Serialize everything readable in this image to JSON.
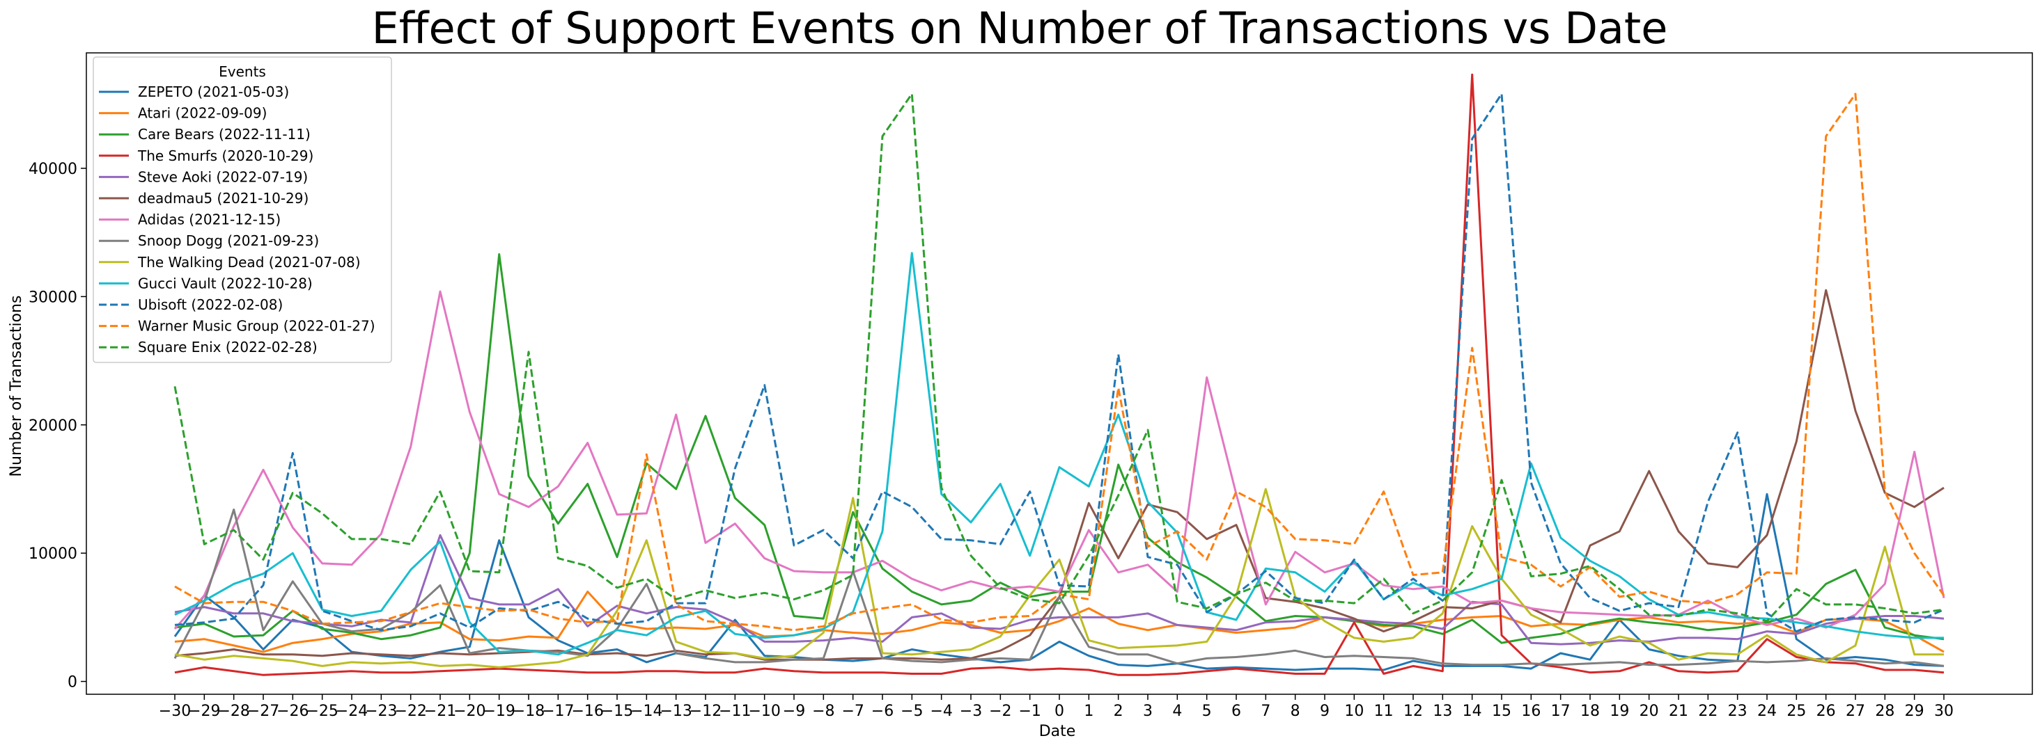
{
  "chart_data": {
    "type": "line",
    "title": "Effect of Support Events on Number of Transactions vs Date",
    "xlabel": "Date",
    "ylabel": "Number of Transactions",
    "xlim": [
      -30,
      30
    ],
    "ylim": [
      -1000,
      49000
    ],
    "yticks": [
      0,
      10000,
      20000,
      30000,
      40000
    ],
    "ytick_labels": [
      "0",
      "10000",
      "20000",
      "30000",
      "40000"
    ],
    "grid": false,
    "legend": {
      "title": "Events",
      "placement": "upper-left"
    },
    "x": [
      -30,
      -29,
      -28,
      -27,
      -26,
      -25,
      -24,
      -23,
      -22,
      -21,
      -20,
      -19,
      -18,
      -17,
      -16,
      -15,
      -14,
      -13,
      -12,
      -11,
      -10,
      -9,
      -8,
      -7,
      -6,
      -5,
      -4,
      -3,
      -2,
      -1,
      0,
      1,
      2,
      3,
      4,
      5,
      6,
      7,
      8,
      9,
      10,
      11,
      12,
      13,
      14,
      15,
      16,
      17,
      18,
      19,
      20,
      21,
      22,
      23,
      24,
      25,
      26,
      27,
      28,
      29,
      30
    ],
    "x_tick_labels": [
      "−30",
      "−29",
      "−28",
      "−27",
      "−26",
      "−25",
      "−24",
      "−23",
      "−22",
      "−21",
      "−20",
      "−19",
      "−18",
      "−17",
      "−16",
      "−15",
      "−14",
      "−13",
      "−12",
      "−11",
      "−10",
      "−9",
      "−8",
      "−7",
      "−6",
      "−5",
      "−4",
      "−3",
      "−2",
      "−1",
      "0",
      "1",
      "2",
      "3",
      "4",
      "5",
      "6",
      "7",
      "8",
      "9",
      "10",
      "11",
      "12",
      "13",
      "14",
      "15",
      "16",
      "17",
      "18",
      "19",
      "20",
      "21",
      "22",
      "23",
      "24",
      "25",
      "26",
      "27",
      "28",
      "29",
      "30"
    ],
    "series": [
      {
        "name": "ZEPETO (2021-05-03)",
        "color": "#1f77b4",
        "dash": "solid",
        "values": [
          3500,
          6700,
          5000,
          2500,
          4800,
          4200,
          2300,
          2000,
          1800,
          2300,
          2700,
          11000,
          5000,
          3200,
          2200,
          2500,
          1500,
          2200,
          1900,
          4800,
          2000,
          1900,
          1700,
          1600,
          1800,
          2500,
          2100,
          1800,
          1500,
          1700,
          3100,
          2000,
          1300,
          1200,
          1400,
          1000,
          1100,
          1000,
          900,
          1000,
          1000,
          900,
          1600,
          1200,
          1200,
          1200,
          1000,
          2200,
          1700,
          4800,
          2500,
          2000,
          1700,
          1600,
          14600,
          3300,
          1700,
          1900,
          1700,
          1300,
          1200
        ]
      },
      {
        "name": "Atari (2022-09-09)",
        "color": "#ff7f0e",
        "dash": "solid",
        "values": [
          3100,
          3300,
          2800,
          2300,
          3000,
          3300,
          3700,
          3900,
          4500,
          4600,
          3300,
          3200,
          3500,
          3400,
          7000,
          4500,
          4100,
          4200,
          4100,
          4400,
          3500,
          3600,
          4000,
          3800,
          3700,
          4000,
          4600,
          4400,
          3800,
          4000,
          4700,
          5700,
          4500,
          4000,
          4400,
          4100,
          3800,
          4000,
          4200,
          5000,
          4700,
          4300,
          4500,
          4800,
          5000,
          5100,
          4300,
          4500,
          4400,
          4800,
          5000,
          4600,
          4700,
          4500,
          4600,
          3800,
          4800,
          4900,
          4700,
          3600,
          2300
        ]
      },
      {
        "name": "Care Bears (2022-11-11)",
        "color": "#2ca02c",
        "dash": "solid",
        "values": [
          4200,
          4500,
          3500,
          3600,
          5500,
          4100,
          3800,
          3300,
          3600,
          4200,
          10000,
          33300,
          16000,
          12300,
          15400,
          9700,
          17000,
          15000,
          20700,
          14300,
          12200,
          5100,
          4900,
          13200,
          8800,
          7000,
          6000,
          6300,
          7700,
          6600,
          7000,
          7000,
          16900,
          11200,
          9300,
          8100,
          6600,
          4700,
          5100,
          5000,
          4700,
          4400,
          4300,
          3700,
          4800,
          3000,
          3400,
          3700,
          4500,
          4900,
          4600,
          4400,
          4000,
          4200,
          4600,
          5200,
          7600,
          8700,
          4200,
          3600,
          3300
        ]
      },
      {
        "name": "The Smurfs (2020-10-29)",
        "color": "#d62728",
        "dash": "solid",
        "values": [
          700,
          1100,
          800,
          500,
          600,
          700,
          800,
          700,
          700,
          800,
          900,
          1000,
          900,
          800,
          700,
          700,
          800,
          800,
          700,
          700,
          1000,
          800,
          700,
          700,
          700,
          600,
          600,
          1000,
          1100,
          900,
          1000,
          900,
          500,
          500,
          600,
          800,
          1000,
          800,
          600,
          600,
          4600,
          600,
          1200,
          800,
          47300,
          3600,
          1400,
          1100,
          700,
          800,
          1500,
          800,
          700,
          800,
          3300,
          1900,
          1500,
          1400,
          900,
          900,
          700
        ]
      },
      {
        "name": "Steve Aoki (2022-07-19)",
        "color": "#9467bd",
        "dash": "solid",
        "values": [
          5400,
          5800,
          5300,
          5300,
          4700,
          4500,
          4300,
          4800,
          4600,
          11400,
          6500,
          6000,
          6000,
          7200,
          4300,
          5900,
          5300,
          5800,
          5600,
          4600,
          3100,
          3100,
          3200,
          3400,
          3100,
          5000,
          5300,
          4200,
          4100,
          4800,
          5000,
          5000,
          5000,
          5300,
          4400,
          4200,
          4000,
          4600,
          4700,
          5000,
          4800,
          4600,
          4500,
          4100,
          6200,
          6000,
          3000,
          2900,
          3000,
          3200,
          3100,
          3400,
          3400,
          3300,
          3900,
          3700,
          4500,
          4900,
          5100,
          5100,
          4900
        ]
      },
      {
        "name": "deadmau5 (2021-10-29)",
        "color": "#8c564b",
        "dash": "solid",
        "values": [
          2000,
          2200,
          2500,
          2100,
          2100,
          2000,
          2200,
          2100,
          2000,
          2200,
          2100,
          2200,
          2300,
          2400,
          2100,
          2200,
          2000,
          2400,
          2100,
          2200,
          1700,
          1700,
          1700,
          1800,
          1800,
          1800,
          1700,
          1800,
          2400,
          3600,
          6600,
          13900,
          9600,
          13800,
          13200,
          11100,
          12200,
          6500,
          6200,
          5700,
          4900,
          3900,
          4700,
          5800,
          5700,
          6300,
          5700,
          4600,
          10600,
          11700,
          16400,
          11700,
          9200,
          8900,
          11400,
          18700,
          30500,
          21100,
          14700,
          13600,
          15100
        ]
      },
      {
        "name": "Adidas (2021-12-15)",
        "color": "#e377c2",
        "dash": "solid",
        "values": [
          4100,
          6700,
          12100,
          16500,
          12000,
          9200,
          9100,
          11500,
          18300,
          30400,
          21000,
          14600,
          13600,
          15200,
          18600,
          13000,
          13100,
          20800,
          10800,
          12300,
          9600,
          8600,
          8500,
          8500,
          9400,
          8000,
          7100,
          7800,
          7200,
          7400,
          7000,
          11800,
          8500,
          9100,
          7000,
          23700,
          14600,
          6000,
          10100,
          8500,
          9200,
          7500,
          7200,
          7400,
          6100,
          6300,
          5700,
          5400,
          5300,
          5200,
          5100,
          5200,
          6300,
          5100,
          4400,
          4900,
          4200,
          5200,
          7600,
          17900,
          6500
        ]
      },
      {
        "name": "Snoop Dogg (2021-09-23)",
        "color": "#7f7f7f",
        "dash": "solid",
        "values": [
          1800,
          6200,
          13400,
          4000,
          7800,
          4500,
          3900,
          4100,
          5400,
          7500,
          2200,
          2600,
          2400,
          2300,
          2000,
          4100,
          7600,
          2200,
          1800,
          1500,
          1500,
          1700,
          1800,
          8600,
          1800,
          1600,
          1500,
          1700,
          1800,
          1700,
          6600,
          2700,
          2100,
          2100,
          1400,
          1800,
          1900,
          2100,
          2400,
          1900,
          2000,
          1900,
          1800,
          1400,
          1300,
          1300,
          1400,
          1300,
          1400,
          1500,
          1300,
          1300,
          1400,
          1600,
          1500,
          1600,
          1800,
          1600,
          1400,
          1500,
          1200
        ]
      },
      {
        "name": "The Walking Dead (2021-07-08)",
        "color": "#bcbd22",
        "dash": "solid",
        "values": [
          2100,
          1700,
          2000,
          1800,
          1600,
          1200,
          1500,
          1400,
          1500,
          1200,
          1300,
          1100,
          1300,
          1500,
          2100,
          5500,
          11000,
          3100,
          2300,
          2200,
          1800,
          2000,
          3800,
          14300,
          2200,
          2100,
          2300,
          2500,
          3500,
          6700,
          9500,
          3200,
          2600,
          2700,
          2800,
          3100,
          6700,
          15000,
          6600,
          4700,
          3400,
          3100,
          3400,
          5300,
          12100,
          8000,
          5200,
          4100,
          2800,
          3500,
          3000,
          1700,
          2200,
          2100,
          3600,
          2100,
          1500,
          2800,
          10500,
          2100,
          2100
        ]
      },
      {
        "name": "Gucci Vault (2022-10-28)",
        "color": "#17becf",
        "dash": "solid",
        "values": [
          5200,
          6300,
          7600,
          8400,
          10000,
          5600,
          5100,
          5500,
          8700,
          10900,
          4600,
          2300,
          2400,
          2100,
          3000,
          4000,
          3600,
          5000,
          5500,
          3700,
          3400,
          3600,
          4100,
          5400,
          11700,
          33400,
          14600,
          12400,
          15400,
          9800,
          16700,
          15200,
          20800,
          14000,
          11600,
          5400,
          4800,
          8800,
          8500,
          7000,
          9400,
          6400,
          7700,
          6700,
          7200,
          8000,
          17000,
          11200,
          9400,
          8200,
          6400,
          5200,
          5400,
          5000,
          4900,
          4600,
          4300,
          3900,
          3600,
          3400,
          3400
        ]
      },
      {
        "name": "Ubisoft (2022-02-08)",
        "color": "#1f77b4",
        "dash": "dashed",
        "values": [
          4400,
          4600,
          4900,
          7500,
          17800,
          5500,
          4700,
          4000,
          4300,
          5300,
          4200,
          5700,
          5500,
          6200,
          4900,
          4500,
          4700,
          6100,
          6100,
          16600,
          23100,
          10600,
          11800,
          9600,
          14800,
          13600,
          11100,
          11000,
          10700,
          14800,
          7500,
          7400,
          25500,
          9700,
          9100,
          5400,
          6800,
          8600,
          6500,
          6100,
          9500,
          6400,
          8000,
          6300,
          42300,
          45800,
          15500,
          9200,
          6500,
          5500,
          6100,
          5800,
          14000,
          19400,
          5300,
          3900,
          4800,
          5000,
          4800,
          4600,
          5600
        ]
      },
      {
        "name": "Warner Music Group (2022-01-27)",
        "color": "#ff7f0e",
        "dash": "dashed",
        "values": [
          7400,
          6100,
          6200,
          6200,
          5500,
          4500,
          4600,
          4700,
          5400,
          6100,
          5800,
          5500,
          5600,
          4900,
          4600,
          4700,
          17700,
          6000,
          4700,
          4500,
          4300,
          4000,
          4300,
          5300,
          5700,
          6000,
          4800,
          4600,
          5000,
          5100,
          6800,
          6400,
          22900,
          10500,
          11700,
          9500,
          14800,
          13600,
          11100,
          11000,
          10700,
          14800,
          8300,
          8500,
          26000,
          9700,
          9100,
          7400,
          8900,
          6600,
          7000,
          6300,
          6100,
          6800,
          8500,
          8400,
          42500,
          45800,
          14800,
          10000,
          6700
        ]
      },
      {
        "name": "Square Enix (2022-02-28)",
        "color": "#2ca02c",
        "dash": "dashed",
        "values": [
          23000,
          10700,
          11800,
          9500,
          14700,
          13100,
          11100,
          11100,
          10700,
          14800,
          8600,
          8500,
          25700,
          9600,
          9000,
          7300,
          8000,
          6400,
          7100,
          6500,
          6900,
          6400,
          7100,
          8300,
          42500,
          45800,
          15100,
          9800,
          7300,
          6400,
          6100,
          9800,
          14500,
          19600,
          6200,
          5700,
          6800,
          7700,
          6300,
          6300,
          6100,
          8000,
          5300,
          6300,
          8500,
          15700,
          8200,
          8400,
          9000,
          7200,
          5200,
          5100,
          5600,
          5300,
          4700,
          7200,
          6000,
          6000,
          5700,
          5300,
          5600
        ]
      }
    ]
  }
}
